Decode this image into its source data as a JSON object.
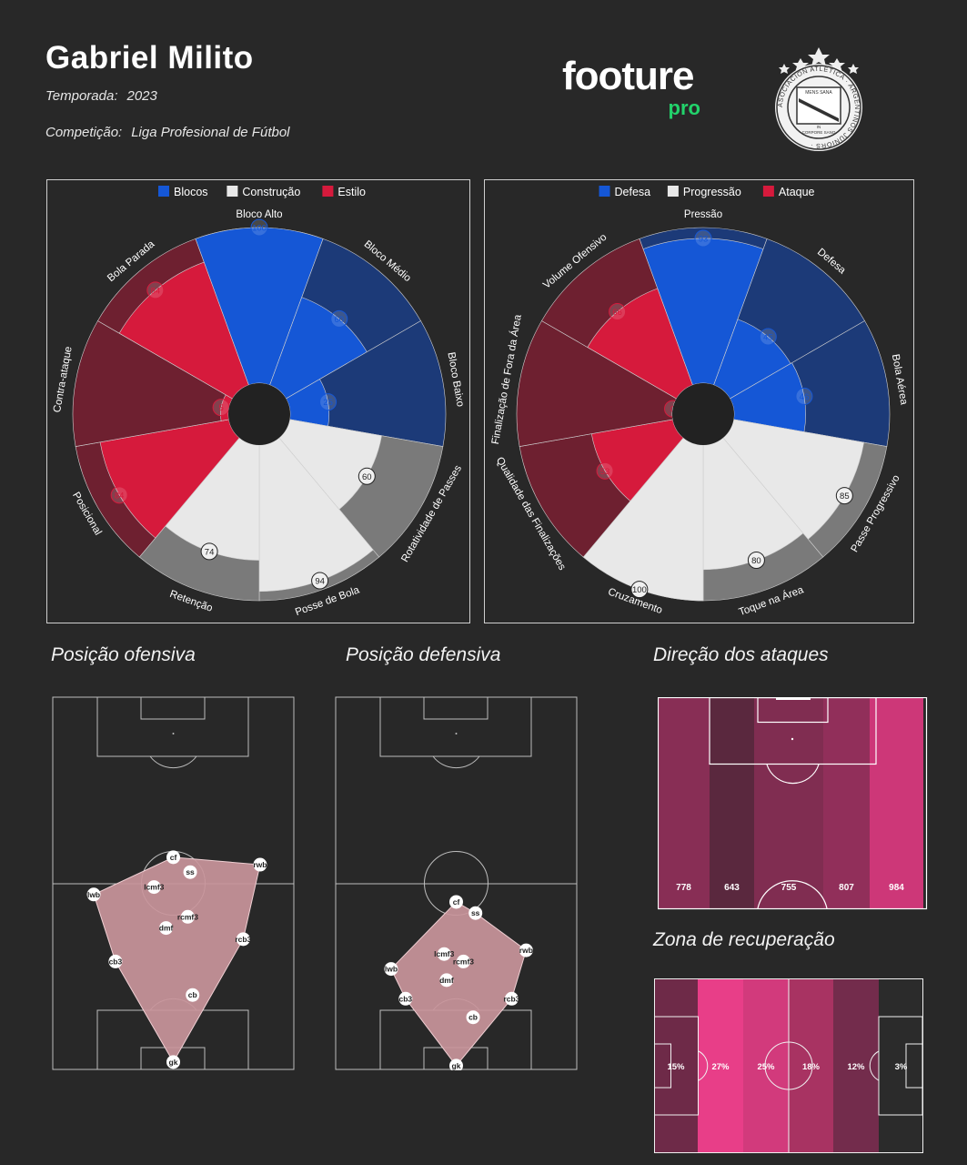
{
  "header": {
    "name": "Gabriel Milito",
    "season_label": "Temporada:",
    "season_value": "2023",
    "competition_label": "Competição:",
    "competition_value": "Liga Profesional de Fútbol"
  },
  "logo": {
    "word": "footure",
    "sub": "pro",
    "accent": "#22d36b"
  },
  "badge": {
    "ring_text": "ASOCIACION ATLETICA · ARGENTINOS JUNIORS ·",
    "motto_top": "MENS SANA",
    "motto_mid": "IN",
    "motto_bot": "CORPORE SANO"
  },
  "chart_data": [
    {
      "type": "polar-bar",
      "legend": [
        {
          "label": "Blocos",
          "color": "#1557d6"
        },
        {
          "label": "Construção",
          "color": "#e8e8e8"
        },
        {
          "label": "Estilo",
          "color": "#d61a3c"
        }
      ],
      "categories": [
        "Bloco Alto",
        "Bloco Médio",
        "Bloco Baixo",
        "Rotatividade de Passes",
        "Posse de Bola",
        "Retenção",
        "Posicional",
        "Contra-ataque",
        "Bola Parada"
      ],
      "groups": [
        "Blocos",
        "Blocos",
        "Blocos",
        "Construção",
        "Construção",
        "Construção",
        "Estilo",
        "Estilo",
        "Estilo"
      ],
      "values": [
        100,
        60,
        25,
        60,
        94,
        74,
        84,
        5,
        84
      ],
      "ylim": [
        0,
        100
      ]
    },
    {
      "type": "polar-bar",
      "legend": [
        {
          "label": "Defesa",
          "color": "#1557d6"
        },
        {
          "label": "Progressão",
          "color": "#e8e8e8"
        },
        {
          "label": "Ataque",
          "color": "#d61a3c"
        }
      ],
      "categories": [
        "Pressão",
        "Defesa",
        "Bola Aérea",
        "Passe Progressivo",
        "Toque na Área",
        "Cruzamento",
        "Qualidade das Finalizações",
        "Finalização de Fora da Área",
        "Volume Ofensivo"
      ],
      "groups": [
        "Defesa",
        "Defesa",
        "Defesa",
        "Progressão",
        "Progressão",
        "Progressão",
        "Ataque",
        "Ataque",
        "Ataque"
      ],
      "values": [
        93,
        45,
        46,
        85,
        80,
        100,
        53,
        0,
        66
      ],
      "ylim": [
        0,
        100
      ]
    },
    {
      "type": "formation",
      "title": "Posição ofensiva",
      "positions": [
        {
          "label": "cf",
          "x": 50,
          "y": 43
        },
        {
          "label": "rwb",
          "x": 86,
          "y": 45
        },
        {
          "label": "ss",
          "x": 57,
          "y": 47
        },
        {
          "label": "lcmf3",
          "x": 42,
          "y": 51
        },
        {
          "label": "lwb",
          "x": 17,
          "y": 53
        },
        {
          "label": "rcmf3",
          "x": 56,
          "y": 59
        },
        {
          "label": "dmf",
          "x": 47,
          "y": 62
        },
        {
          "label": "rcb3",
          "x": 79,
          "y": 65
        },
        {
          "label": "cb3",
          "x": 26,
          "y": 71
        },
        {
          "label": "cb",
          "x": 58,
          "y": 80
        },
        {
          "label": "gk",
          "x": 50,
          "y": 98
        }
      ]
    },
    {
      "type": "formation",
      "title": "Posição defensiva",
      "positions": [
        {
          "label": "cf",
          "x": 50,
          "y": 55
        },
        {
          "label": "ss",
          "x": 58,
          "y": 58
        },
        {
          "label": "rwb",
          "x": 79,
          "y": 68
        },
        {
          "label": "lcmf3",
          "x": 45,
          "y": 69
        },
        {
          "label": "rcmf3",
          "x": 53,
          "y": 71
        },
        {
          "label": "lwb",
          "x": 23,
          "y": 73
        },
        {
          "label": "dmf",
          "x": 46,
          "y": 76
        },
        {
          "label": "cb3",
          "x": 29,
          "y": 81
        },
        {
          "label": "rcb3",
          "x": 73,
          "y": 81
        },
        {
          "label": "cb",
          "x": 57,
          "y": 86
        },
        {
          "label": "gk",
          "x": 50,
          "y": 99
        }
      ]
    },
    {
      "type": "heatmap",
      "title": "Direção dos ataques",
      "values": [
        778,
        643,
        755,
        807,
        984
      ]
    },
    {
      "type": "heatmap",
      "title": "Zona de recuperação",
      "values": [
        "15%",
        "27%",
        "25%",
        "18%",
        "12%",
        "3%"
      ]
    }
  ]
}
